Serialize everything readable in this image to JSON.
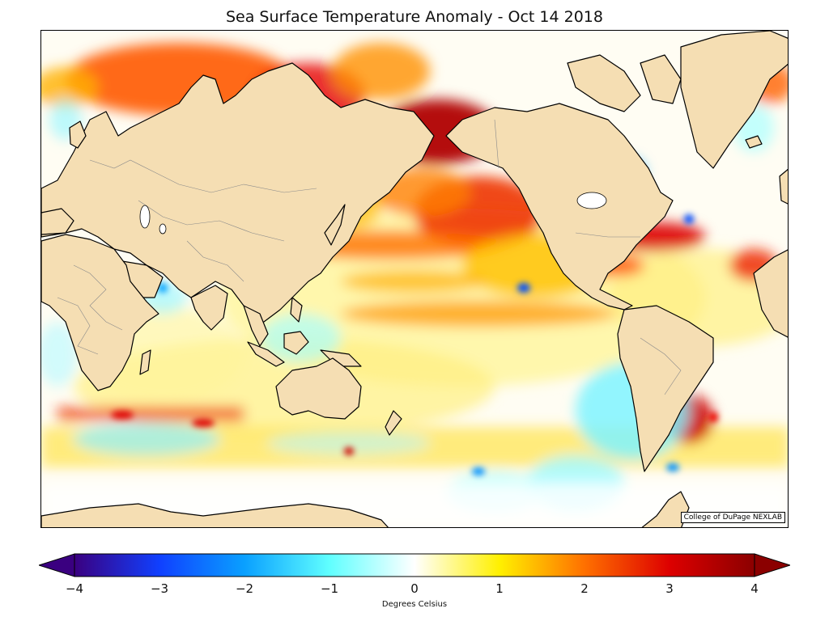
{
  "title": "Sea Surface Temperature Anomaly - Oct 14 2018",
  "credit": "College of DuPage NEXLAB",
  "colorbar": {
    "label": "Degrees Celsius",
    "min": -4,
    "max": 4,
    "ticks": [
      "−4",
      "−3",
      "−2",
      "−1",
      "0",
      "1",
      "2",
      "3",
      "4"
    ],
    "stops": [
      {
        "v": -4,
        "c": "#3a0080"
      },
      {
        "v": -3,
        "c": "#1040ff"
      },
      {
        "v": -2,
        "c": "#0aa0ff"
      },
      {
        "v": -1,
        "c": "#60ffff"
      },
      {
        "v": 0,
        "c": "#ffffff"
      },
      {
        "v": 1,
        "c": "#fff000"
      },
      {
        "v": 2,
        "c": "#ff7000"
      },
      {
        "v": 3,
        "c": "#dd0000"
      },
      {
        "v": 4,
        "c": "#8b0000"
      }
    ]
  },
  "colors": {
    "land": "#f5deb3",
    "coast": "#000000",
    "ocean_base": "#fffdf3"
  }
}
